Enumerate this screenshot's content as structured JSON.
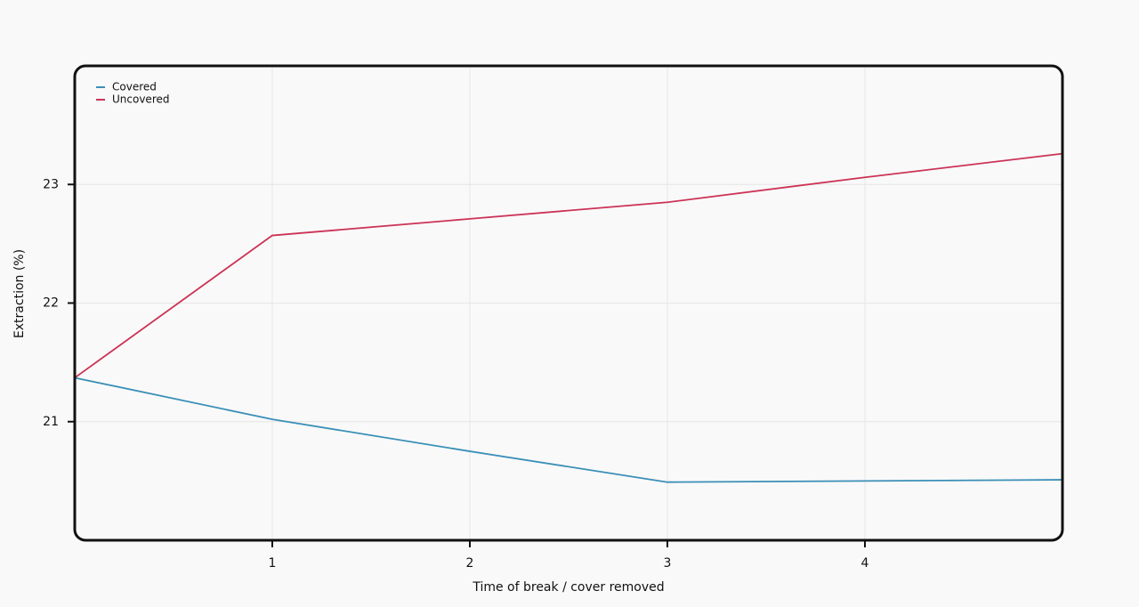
{
  "chart_data": {
    "type": "line",
    "x_label": "Time of break / cover removed",
    "y_label": "Extraction (%)",
    "x": [
      0,
      1,
      2,
      3,
      4,
      5
    ],
    "series": [
      {
        "name": "Covered",
        "color": "#3a8fb7",
        "values": [
          21.37,
          21.02,
          20.75,
          20.49,
          20.5,
          20.51
        ]
      },
      {
        "name": "Uncovered",
        "color": "#cc3355",
        "values": [
          21.37,
          22.57,
          22.71,
          22.85,
          23.06,
          23.26
        ]
      }
    ],
    "xlim": [
      0,
      5
    ],
    "xticks": [
      1,
      2,
      3,
      4
    ],
    "ylim": [
      20,
      24
    ],
    "yticks": [
      21,
      22,
      23
    ],
    "grid": true,
    "legend": "top-left"
  }
}
